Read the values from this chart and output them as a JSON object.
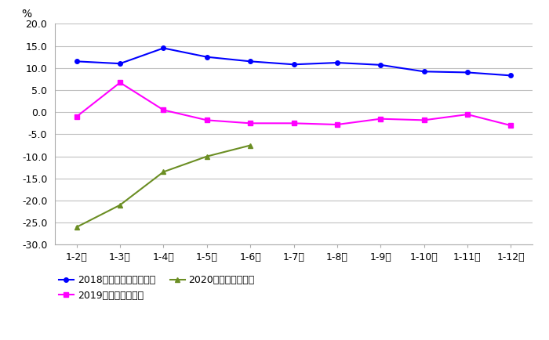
{
  "x_labels": [
    "1-2月",
    "1-3月",
    "1-4月",
    "1-5月",
    "1-6月",
    "1-7月",
    "1-8月",
    "1-9月",
    "1-10月",
    "1-11月",
    "1-12月"
  ],
  "series_2018": [
    11.5,
    11.0,
    14.5,
    12.5,
    11.5,
    10.8,
    11.2,
    10.7,
    9.2,
    9.0,
    8.3
  ],
  "series_2019": [
    -1.0,
    6.7,
    0.5,
    -1.8,
    -2.5,
    -2.5,
    -2.8,
    -1.5,
    -1.8,
    -0.5,
    -3.0
  ],
  "series_2020": [
    -26.0,
    -21.0,
    -13.5,
    -10.0,
    -7.5
  ],
  "color_2018": "#0000FF",
  "color_2019": "#FF00FF",
  "color_2020": "#6B8E23",
  "ylabel": "%",
  "ylim": [
    -30.0,
    20.0
  ],
  "yticks": [
    -30.0,
    -25.0,
    -20.0,
    -15.0,
    -10.0,
    -5.0,
    0.0,
    5.0,
    10.0,
    15.0,
    20.0
  ],
  "legend_2018": "2018年主营业务收入同比",
  "legend_2019": "2019年营业收入同比",
  "legend_2020": "2020年营业收入同比",
  "background_color": "#ffffff",
  "grid_color": "#c0c0c0"
}
